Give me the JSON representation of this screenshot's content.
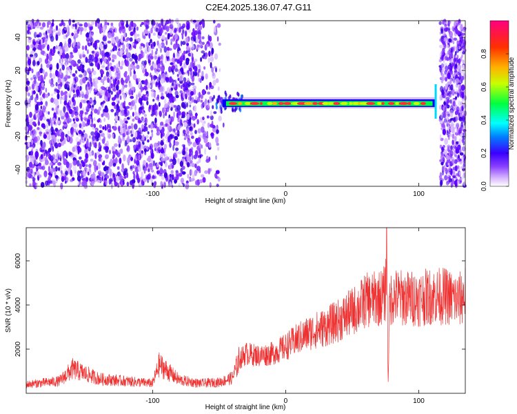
{
  "page": {
    "title": "C2E4.2025.136.07.47.G11"
  },
  "colors": {
    "heatmap_point": "#5a00ff",
    "signal_band": "#00ff40",
    "signal_peak": "#ff3030",
    "snr_line": "#ee3030",
    "axis": "#000000",
    "background": "#ffffff"
  },
  "chart_data": [
    {
      "type": "heatmap",
      "title": "C2E4.2025.136.07.47.G11",
      "xlabel": "Height of straight line (km)",
      "ylabel": "Frequency (Hz)",
      "xlim": [
        -195,
        135
      ],
      "ylim": [
        -50,
        50
      ],
      "x_ticks": [
        -100,
        0,
        100
      ],
      "x_tick_labels": [
        "-100",
        "0",
        "100"
      ],
      "y_ticks": [
        -40,
        -20,
        0,
        20,
        40
      ],
      "y_tick_labels": [
        "-40",
        "-20",
        "0",
        "20",
        "40"
      ],
      "colorbar": {
        "label": "Normalized spectral amplitude",
        "range": [
          0,
          1
        ],
        "ticks": [
          0.0,
          0.2,
          0.4,
          0.6,
          0.8
        ],
        "tick_labels": [
          "0.0",
          "0.2",
          "0.4",
          "0.6",
          "0.8"
        ]
      },
      "regions": [
        {
          "name": "noise",
          "x_range": [
            -195,
            -45
          ],
          "y_range": [
            -50,
            50
          ],
          "amplitude": 0.1
        },
        {
          "name": "signal",
          "x_range": [
            -50,
            113
          ],
          "frequency": 0,
          "amplitude": 0.9
        },
        {
          "name": "noise",
          "x_range": [
            116,
            135
          ],
          "y_range": [
            -50,
            50
          ],
          "amplitude": 0.1
        }
      ],
      "grid": false
    },
    {
      "type": "line",
      "xlabel": "Height of straight line (km)",
      "ylabel": "SNR (10 * v/v)",
      "xlim": [
        -195,
        135
      ],
      "ylim": [
        0,
        7500
      ],
      "x_ticks": [
        -100,
        0,
        100
      ],
      "x_tick_labels": [
        "-100",
        "0",
        "100"
      ],
      "y_ticks": [
        2000,
        4000,
        6000
      ],
      "y_tick_labels": [
        "2000",
        "4000",
        "6000"
      ],
      "x": [
        -195,
        -170,
        -160,
        -140,
        -120,
        -100,
        -95,
        -80,
        -65,
        -50,
        -40,
        -35,
        -30,
        -20,
        -10,
        0,
        10,
        20,
        30,
        40,
        50,
        55,
        60,
        70,
        75,
        76,
        77,
        78,
        80,
        90,
        100,
        110,
        120,
        130,
        135
      ],
      "series": [
        {
          "values": [
            400,
            550,
            1100,
            650,
            550,
            450,
            1300,
            600,
            450,
            500,
            700,
            1500,
            1800,
            1700,
            1800,
            2100,
            2500,
            2800,
            3000,
            3300,
            3700,
            3900,
            4200,
            4300,
            4500,
            7400,
            300,
            4100,
            4400,
            4300,
            4300,
            4400,
            4400,
            4200,
            4500
          ]
        }
      ],
      "grid": false
    }
  ]
}
